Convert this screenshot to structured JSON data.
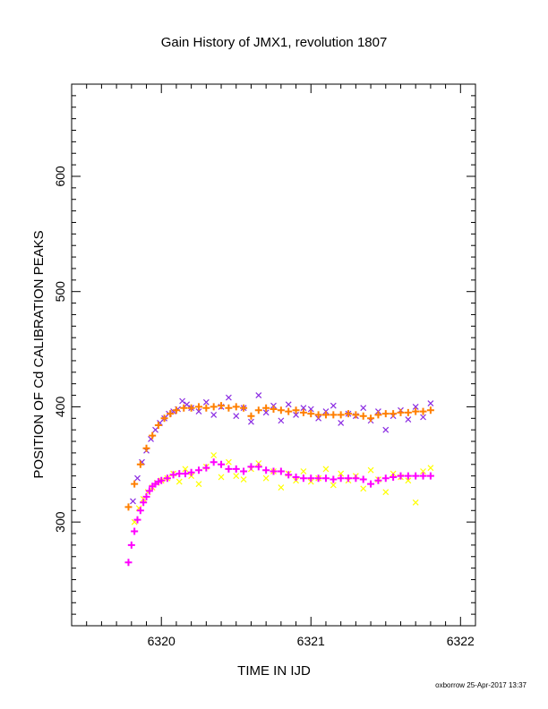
{
  "chart_data": {
    "type": "scatter",
    "title": "Gain History of JMX1, revolution 1807",
    "xlabel": "TIME IN IJD",
    "ylabel": "POSITION OF Cd CALIBRATION PEAKS",
    "xlim": [
      6319.4,
      6322.1
    ],
    "ylim": [
      210,
      680
    ],
    "x_ticks": [
      6320,
      6321,
      6322
    ],
    "x_tick_labels": [
      "6320",
      "6321",
      "6322"
    ],
    "y_ticks": [
      300,
      400,
      500,
      600
    ],
    "y_tick_labels": [
      "300",
      "400",
      "500",
      "600"
    ],
    "grid": false,
    "series": [
      {
        "marker": "x",
        "color": "#8a2be2",
        "x": [
          6319.81,
          6319.84,
          6319.87,
          6319.9,
          6319.93,
          6319.96,
          6319.99,
          6320.02,
          6320.05,
          6320.08,
          6320.11,
          6320.14,
          6320.17,
          6320.2,
          6320.25,
          6320.3,
          6320.35,
          6320.4,
          6320.45,
          6320.5,
          6320.55,
          6320.6,
          6320.65,
          6320.7,
          6320.75,
          6320.8,
          6320.85,
          6320.9,
          6320.95,
          6321.0,
          6321.05,
          6321.1,
          6321.15,
          6321.2,
          6321.25,
          6321.3,
          6321.35,
          6321.4,
          6321.45,
          6321.5,
          6321.55,
          6321.6,
          6321.65,
          6321.7,
          6321.75,
          6321.8
        ],
        "y": [
          318,
          338,
          352,
          362,
          372,
          380,
          386,
          390,
          394,
          396,
          398,
          405,
          402,
          399,
          396,
          404,
          393,
          400,
          408,
          392,
          399,
          387,
          410,
          395,
          401,
          388,
          402,
          393,
          399,
          398,
          390,
          396,
          401,
          386,
          394,
          392,
          399,
          388,
          396,
          380,
          392,
          397,
          389,
          400,
          391,
          403
        ]
      },
      {
        "marker": "+",
        "color": "#ff7f00",
        "x": [
          6319.78,
          6319.82,
          6319.86,
          6319.9,
          6319.94,
          6319.98,
          6320.02,
          6320.06,
          6320.1,
          6320.15,
          6320.2,
          6320.25,
          6320.3,
          6320.35,
          6320.4,
          6320.45,
          6320.5,
          6320.55,
          6320.6,
          6320.65,
          6320.7,
          6320.75,
          6320.8,
          6320.85,
          6320.9,
          6320.95,
          6321.0,
          6321.05,
          6321.1,
          6321.15,
          6321.2,
          6321.25,
          6321.3,
          6321.35,
          6321.4,
          6321.45,
          6321.5,
          6321.55,
          6321.6,
          6321.65,
          6321.7,
          6321.75,
          6321.8
        ],
        "y": [
          313,
          333,
          350,
          364,
          375,
          384,
          390,
          394,
          397,
          399,
          399,
          400,
          399,
          400,
          401,
          399,
          400,
          399,
          392,
          397,
          399,
          398,
          397,
          396,
          397,
          395,
          394,
          393,
          393,
          393,
          393,
          394,
          393,
          392,
          390,
          393,
          394,
          394,
          395,
          395,
          396,
          396,
          397
        ]
      },
      {
        "marker": "x",
        "color": "#ffff00",
        "x": [
          6319.82,
          6319.85,
          6319.88,
          6319.91,
          6319.94,
          6319.97,
          6320.0,
          6320.04,
          6320.08,
          6320.12,
          6320.16,
          6320.2,
          6320.25,
          6320.3,
          6320.35,
          6320.4,
          6320.45,
          6320.5,
          6320.55,
          6320.6,
          6320.65,
          6320.7,
          6320.75,
          6320.8,
          6320.85,
          6320.9,
          6320.95,
          6321.0,
          6321.05,
          6321.1,
          6321.15,
          6321.2,
          6321.25,
          6321.3,
          6321.35,
          6321.4,
          6321.45,
          6321.5,
          6321.55,
          6321.6,
          6321.65,
          6321.7,
          6321.75,
          6321.8
        ],
        "y": [
          300,
          312,
          320,
          326,
          330,
          334,
          336,
          338,
          342,
          335,
          346,
          340,
          333,
          348,
          358,
          339,
          352,
          340,
          337,
          346,
          351,
          338,
          344,
          330,
          342,
          336,
          344,
          335,
          338,
          346,
          332,
          342,
          336,
          340,
          329,
          345,
          337,
          326,
          342,
          339,
          336,
          317,
          344,
          347
        ]
      },
      {
        "marker": "+",
        "color": "#ff00ff",
        "x": [
          6319.78,
          6319.8,
          6319.82,
          6319.84,
          6319.86,
          6319.88,
          6319.9,
          6319.92,
          6319.94,
          6319.96,
          6319.98,
          6320.0,
          6320.04,
          6320.08,
          6320.12,
          6320.16,
          6320.2,
          6320.25,
          6320.3,
          6320.35,
          6320.4,
          6320.45,
          6320.5,
          6320.55,
          6320.6,
          6320.65,
          6320.7,
          6320.75,
          6320.8,
          6320.85,
          6320.9,
          6320.95,
          6321.0,
          6321.05,
          6321.1,
          6321.15,
          6321.2,
          6321.25,
          6321.3,
          6321.35,
          6321.4,
          6321.45,
          6321.5,
          6321.55,
          6321.6,
          6321.65,
          6321.7,
          6321.75,
          6321.8
        ],
        "y": [
          265,
          280,
          292,
          302,
          310,
          317,
          322,
          327,
          331,
          333,
          335,
          336,
          338,
          341,
          342,
          342,
          343,
          345,
          347,
          352,
          350,
          346,
          346,
          344,
          348,
          348,
          345,
          344,
          344,
          341,
          339,
          338,
          338,
          338,
          338,
          337,
          338,
          338,
          338,
          337,
          333,
          336,
          338,
          339,
          340,
          340,
          340,
          340,
          340
        ]
      }
    ],
    "footer": "oxborrow 25-Apr-2017 13:37"
  }
}
